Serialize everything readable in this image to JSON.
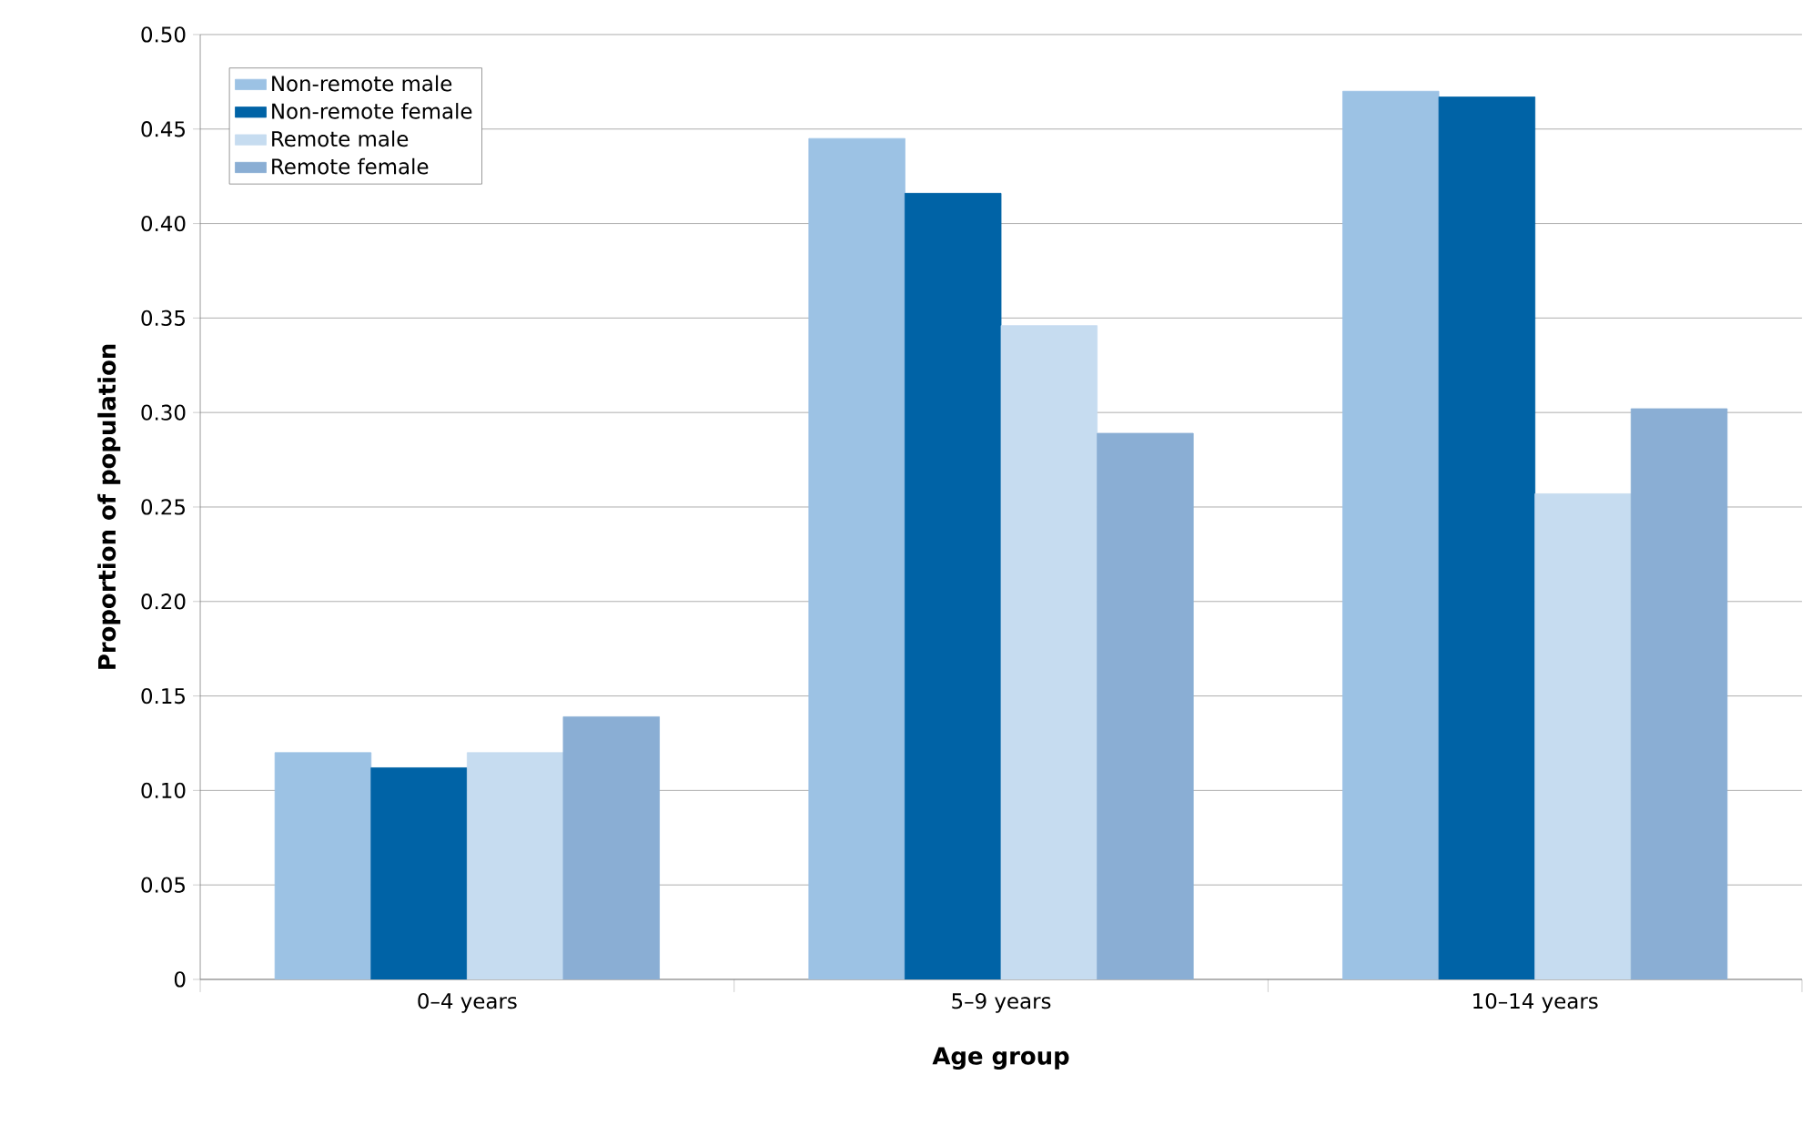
{
  "chart_data": {
    "type": "bar",
    "xlabel": "Age group",
    "ylabel": "Proportion of population",
    "categories": [
      "0–4 years",
      "5–9 years",
      "10–14 years"
    ],
    "series": [
      {
        "name": "Non-remote male",
        "color": "#9cc2e4",
        "values": [
          0.12,
          0.445,
          0.47
        ]
      },
      {
        "name": "Non-remote female",
        "color": "#0063a6",
        "values": [
          0.112,
          0.416,
          0.467
        ]
      },
      {
        "name": "Remote male",
        "color": "#c6dcf0",
        "values": [
          0.12,
          0.346,
          0.257
        ]
      },
      {
        "name": "Remote female",
        "color": "#8aaed4",
        "values": [
          0.139,
          0.289,
          0.302
        ]
      }
    ],
    "ylim": [
      0,
      0.5
    ],
    "yticks": [
      0,
      0.05,
      {
        "value": 0.1,
        "label": "0.10"
      },
      0.15,
      {
        "value": 0.2,
        "label": "0.20"
      },
      0.25,
      {
        "value": 0.3,
        "label": "0.30"
      },
      0.35,
      {
        "value": 0.4,
        "label": "0.40"
      },
      0.45,
      {
        "value": 0.5,
        "label": "0.50"
      }
    ],
    "grid": "y",
    "legend": "top left"
  }
}
